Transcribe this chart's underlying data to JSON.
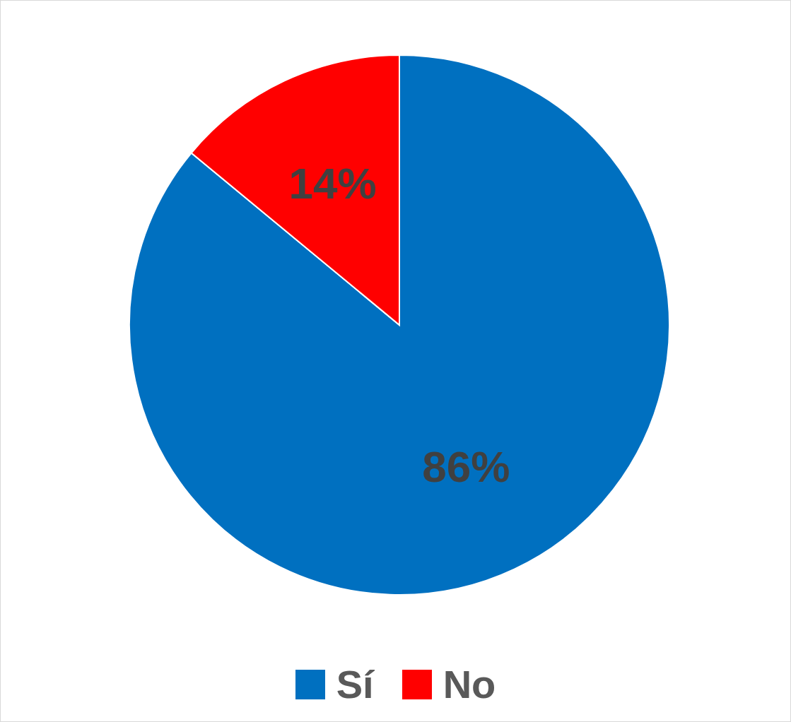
{
  "chart_data": {
    "type": "pie",
    "categories": [
      "Sí",
      "No"
    ],
    "values": [
      86,
      14
    ],
    "colors": [
      "#0070c0",
      "#ff0000"
    ],
    "value_labels": [
      "86%",
      "14%"
    ],
    "legend": "bottom"
  }
}
